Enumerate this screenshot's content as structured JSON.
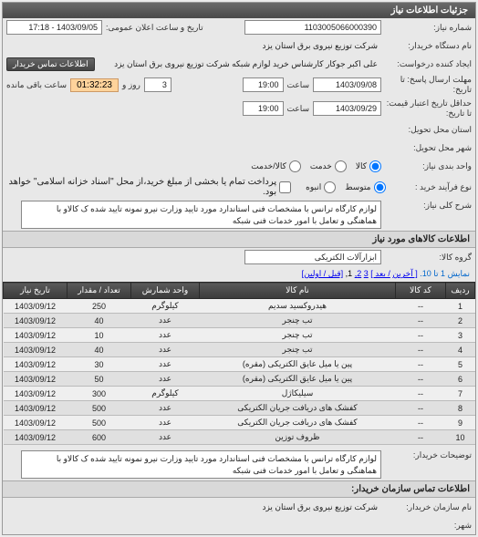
{
  "panel1": {
    "title": "جزئیات اطلاعات نیاز"
  },
  "need": {
    "number_lbl": "شماره نیاز:",
    "number": "1103005066000390",
    "announce_lbl": "تاریخ و ساعت اعلان عمومی:",
    "announce_dt": "1403/09/05 - 17:18",
    "buyer_lbl": "نام دستگاه خریدار:",
    "buyer": "شرکت توزیع نیروی برق استان یزد",
    "requester_lbl": "ایجاد کننده درخواست:",
    "requester": "علی اکبر  جوکار  کارشناس خرید لوازم شبکه   شرکت توزیع نیروی برق استان یزد",
    "contact_btn": "اطلاعات تماس خریدار",
    "deadline_lbl": "مهلت ارسال پاسخ: تا تاریخ:",
    "deadline_date": "1403/09/08",
    "hour_lbl": "ساعت",
    "deadline_hour": "19:00",
    "remain_day_val": "3",
    "day_and_lbl": "روز و",
    "remain_time_val": "01:32:23",
    "remain_sfx": "ساعت باقی مانده",
    "valid_lbl": "حداقل تاریخ اعتبار قیمت: تا تاریخ:",
    "valid_date": "1403/09/29",
    "valid_hour": "19:00",
    "delivery_addr_lbl": "استان محل تحویل:",
    "delivery_city_lbl": "شهر محل تحویل:",
    "pack_lbl": "واحد بندی نیاز:",
    "pack_opts": [
      "کالا",
      "خدمت",
      "کالا/خدمت"
    ],
    "priority_lbl": "نوع فرآیند خرید :",
    "priority_opts": [
      "متوسط",
      "انبوه"
    ],
    "priority_note": "پرداخت تمام یا بخشی از مبلغ خرید،از محل \"اسناد خزانه اسلامی\" خواهد بود.",
    "desc_lbl": "شرح کلی نیاز:",
    "desc_text": "لوازم کارگاه ترانس با مشخصات فنی استاندارد مورد تایید وزارت نیرو نمونه تایید شده ک کالاو با هماهنگی و تعامل با امور خدمات فنی شبکه"
  },
  "goods": {
    "section": "اطلاعات کالاهای مورد نیاز",
    "group_lbl": "گروه کالا:",
    "group_val": "ابزارآلات الکتریکی",
    "pager_pre": "نمایش 1 تا 10.",
    "pager_links": [
      "[ آخرین",
      "/ بعد ]",
      "3",
      "2,",
      "1,",
      "[قبل / اولین]"
    ],
    "cols": [
      "ردیف",
      "کد کالا",
      "نام کالا",
      "واحد شمارش",
      "تعداد / مقدار",
      "تاریخ نیاز"
    ],
    "rows": [
      [
        "1",
        "--",
        "هیدروکسید سدیم",
        "کیلوگرم",
        "250",
        "1403/09/12"
      ],
      [
        "2",
        "--",
        "تب چنجر",
        "عدد",
        "40",
        "1403/09/12"
      ],
      [
        "3",
        "--",
        "تب چنجر",
        "عدد",
        "10",
        "1403/09/12"
      ],
      [
        "4",
        "--",
        "تب چنجر",
        "عدد",
        "40",
        "1403/09/12"
      ],
      [
        "5",
        "--",
        "پین یا میل عایق الکتریکی (مقره)",
        "عدد",
        "30",
        "1403/09/12"
      ],
      [
        "6",
        "--",
        "پین یا میل عایق الکتریکی (مقره)",
        "عدد",
        "50",
        "1403/09/12"
      ],
      [
        "7",
        "--",
        "سیلیکاژل",
        "کیلوگرم",
        "300",
        "1403/09/12"
      ],
      [
        "8",
        "--",
        "کفشک های دریافت جریان الکتریکی",
        "عدد",
        "500",
        "1403/09/12"
      ],
      [
        "9",
        "--",
        "کفشک های دریافت جریان الکتریکی",
        "عدد",
        "500",
        "1403/09/12"
      ],
      [
        "10",
        "--",
        "ظروف توزین",
        "عدد",
        "600",
        "1403/09/12"
      ]
    ]
  },
  "footer": {
    "notes_lbl": "توضیحات خریدار:",
    "notes_text": "لوازم کارگاه ترانس با مشخصات فنی استاندارد مورد تایید وزارت نیرو نمونه تایید شده ک کالاو با هماهنگی و تعامل با امور خدمات فنی شبکه",
    "org_section": "اطلاعات تماس سازمان خریدار:",
    "org_lbl": "نام سازمان خریدار:",
    "org_val": "شرکت توزیع نیروی برق استان یزد",
    "city_lbl": "شهر:"
  }
}
